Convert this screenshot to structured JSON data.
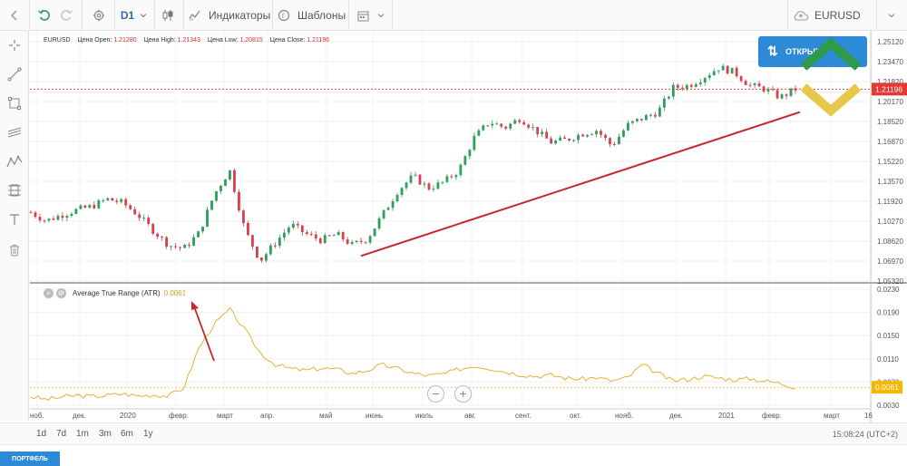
{
  "toolbar": {
    "timeframe": "D1",
    "indicators_label": "Индикаторы",
    "templates_label": "Шаблоны",
    "symbol": "EURUSD"
  },
  "ohlc": {
    "symbol": "EURUSD",
    "open_label": "Цена Open:",
    "open_value": "1.21280",
    "high_label": "Цена High:",
    "high_value": "1.21343",
    "low_label": "Цена Low:",
    "low_value": "1.20815",
    "close_label": "Цена Close:",
    "close_value": "1.21196"
  },
  "price_axis": {
    "ticks": [
      "1.25120",
      "1.23470",
      "1.21820",
      "1.20170",
      "1.18520",
      "1.16870",
      "1.15220",
      "1.13570",
      "1.11920",
      "1.10270",
      "1.08620",
      "1.06970",
      "1.05320"
    ],
    "current_price": "1.21196"
  },
  "atr": {
    "name": "Average True Range (ATR)",
    "value": "0.0061",
    "ticks": [
      "0.0230",
      "0.0190",
      "0.0150",
      "0.0110",
      "0.0070",
      "0.0030"
    ],
    "current_value": "0.0061"
  },
  "time_axis": {
    "labels": [
      "ноб.",
      "дек.",
      "2020",
      "февр.",
      "март",
      "апр.",
      "май",
      "июнь",
      "июль",
      "авг.",
      "сент.",
      "окт.",
      "нояб.",
      "дек.",
      "2021",
      "февр.",
      "март",
      "16"
    ]
  },
  "trade": {
    "label": "ОТКРЫТЬ"
  },
  "bottom": {
    "ranges": [
      "1d",
      "7d",
      "1m",
      "3m",
      "6m",
      "1y"
    ],
    "clock": "15:08:24 (UTC+2)",
    "portfolio": "ПОРТФЕЛЬ"
  },
  "chart_data": {
    "type": "candlestick",
    "symbol": "EURUSD",
    "x_labels": [
      "ноб.",
      "дек.",
      "2020",
      "февр.",
      "март",
      "апр.",
      "май",
      "июнь",
      "июль",
      "авг.",
      "сент.",
      "окт.",
      "нояб.",
      "дек.",
      "2021",
      "февр.",
      "март"
    ],
    "price_path": [
      1.11,
      1.103,
      1.108,
      1.112,
      1.115,
      1.121,
      1.118,
      1.108,
      1.095,
      1.083,
      1.08,
      1.093,
      1.125,
      1.145,
      1.095,
      1.07,
      1.085,
      1.1,
      1.092,
      1.087,
      1.092,
      1.083,
      1.088,
      1.108,
      1.128,
      1.14,
      1.13,
      1.135,
      1.145,
      1.172,
      1.185,
      1.18,
      1.188,
      1.178,
      1.168,
      1.17,
      1.175,
      1.178,
      1.165,
      1.182,
      1.188,
      1.193,
      1.213,
      1.215,
      1.222,
      1.23,
      1.226,
      1.215,
      1.212,
      1.205,
      1.212
    ],
    "atr_path": [
      0.0045,
      0.004,
      0.0044,
      0.0047,
      0.0045,
      0.0047,
      0.005,
      0.0046,
      0.0048,
      0.0046,
      0.006,
      0.013,
      0.017,
      0.0195,
      0.016,
      0.012,
      0.01,
      0.0093,
      0.009,
      0.0094,
      0.0092,
      0.0085,
      0.009,
      0.01,
      0.0093,
      0.0085,
      0.0081,
      0.0084,
      0.0092,
      0.0098,
      0.0094,
      0.0088,
      0.0083,
      0.008,
      0.0082,
      0.0077,
      0.0075,
      0.0078,
      0.0072,
      0.0077,
      0.01,
      0.0085,
      0.0072,
      0.0075,
      0.008,
      0.0077,
      0.0074,
      0.0076,
      0.0072,
      0.0068,
      0.0061
    ],
    "trendline": {
      "start": 1.074,
      "end": 1.193
    },
    "colors": {
      "up": "#2e9e5b",
      "down": "#d8404c",
      "atr": "#e0b33a",
      "trendline": "#c62828",
      "price_line": "#d32f2f"
    }
  }
}
